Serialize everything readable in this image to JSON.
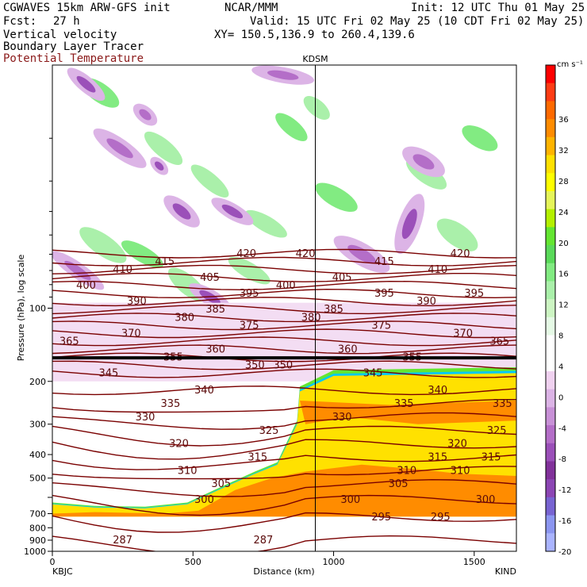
{
  "header": {
    "model": "CGWAVES 15km ARW-GFS init",
    "org": "NCAR/MMM",
    "init": "Init: 12 UTC Thu 01 May 25",
    "fcst_label": "Fcst:",
    "fcst_value": "27 h",
    "valid": "Valid: 15 UTC Fri 02 May 25 (10 CDT Fri 02 May 25)",
    "field1": "Vertical velocity",
    "field2": "Boundary Layer Tracer",
    "field3": "Potential Temperature",
    "xy": "XY= 150.5,136.9 to 260.4,139.6"
  },
  "colors": {
    "isentrope": "#7a0000",
    "thick_line": "#000000",
    "pbl_fill": "#ff8c00"
  },
  "chart_data": {
    "type": "heatmap",
    "title": "",
    "station_marker": "KDSM",
    "station_distance_km": 935,
    "xlabel": "Distance (km)",
    "ylabel": "Pressure (hPa), log scale",
    "x_endpoints": {
      "left": "KBJC",
      "right": "KIND"
    },
    "xlim": [
      0,
      1650
    ],
    "x_ticks": [
      0,
      500,
      1000,
      1500
    ],
    "y_scale": "log",
    "ylim": [
      1000,
      10
    ],
    "y_ticks": [
      100,
      200,
      300,
      400,
      500,
      600,
      700,
      800,
      900,
      1000
    ],
    "y_tick_labels": [
      "100",
      "200",
      "300",
      "400",
      "500",
      "",
      "700",
      "800",
      "900",
      "1000"
    ],
    "colorbar": {
      "unit": "cm s⁻¹",
      "labels": [
        "36",
        "32",
        "28",
        "24",
        "20",
        "16",
        "12",
        "8",
        "4",
        "0",
        "-4",
        "-8",
        "-12",
        "-16",
        "-20"
      ],
      "colors": [
        "#ff0000",
        "#ff3c14",
        "#ff6a00",
        "#ff8c00",
        "#ffb400",
        "#ffe100",
        "#ffff00",
        "#e6f55a",
        "#b4f000",
        "#64e632",
        "#5ada5a",
        "#82eb82",
        "#aaf0aa",
        "#cdf5c3",
        "#e6fae6",
        "#ffffff",
        "#ffffff",
        "#f0d2f0",
        "#dcb4e6",
        "#c891d7",
        "#b46ec8",
        "#9b50b9",
        "#82329b",
        "#8c46b4",
        "#7864d2",
        "#8c96f0",
        "#aab4ff"
      ]
    },
    "theta_contours": [
      {
        "value": 287,
        "label_positions_km": [
          250,
          750
        ]
      },
      {
        "value": 295,
        "label_positions_km": [
          1170,
          1380
        ]
      },
      {
        "value": 300,
        "label_positions_km": [
          540,
          1060,
          1540
        ]
      },
      {
        "value": 305,
        "label_positions_km": [
          600,
          1230
        ]
      },
      {
        "value": 310,
        "label_positions_km": [
          480,
          1260,
          1450
        ]
      },
      {
        "value": 315,
        "label_positions_km": [
          730,
          1370,
          1560
        ]
      },
      {
        "value": 320,
        "label_positions_km": [
          450,
          1440
        ]
      },
      {
        "value": 325,
        "label_positions_km": [
          770,
          1580
        ]
      },
      {
        "value": 330,
        "label_positions_km": [
          330,
          1030
        ]
      },
      {
        "value": 335,
        "label_positions_km": [
          420,
          1250,
          1600
        ]
      },
      {
        "value": 340,
        "label_positions_km": [
          540,
          1370
        ]
      },
      {
        "value": 345,
        "label_positions_km": [
          200,
          1140
        ]
      },
      {
        "value": 350,
        "label_positions_km": [
          720,
          820
        ]
      },
      {
        "value": 355,
        "label_positions_km": [
          430,
          1280
        ]
      },
      {
        "value": 360,
        "label_positions_km": [
          580,
          1050
        ]
      },
      {
        "value": 365,
        "label_positions_km": [
          60,
          1590
        ]
      },
      {
        "value": 370,
        "label_positions_km": [
          280,
          1460
        ]
      },
      {
        "value": 375,
        "label_positions_km": [
          700,
          1170
        ]
      },
      {
        "value": 380,
        "label_positions_km": [
          470,
          920
        ]
      },
      {
        "value": 385,
        "label_positions_km": [
          580,
          1000
        ]
      },
      {
        "value": 390,
        "label_positions_km": [
          300,
          1330
        ]
      },
      {
        "value": 395,
        "label_positions_km": [
          700,
          1180,
          1500
        ]
      },
      {
        "value": 400,
        "label_positions_km": [
          120,
          830
        ]
      },
      {
        "value": 405,
        "label_positions_km": [
          560,
          1030
        ]
      },
      {
        "value": 410,
        "label_positions_km": [
          250,
          1370
        ]
      },
      {
        "value": 415,
        "label_positions_km": [
          400,
          1180
        ]
      },
      {
        "value": 420,
        "label_positions_km": [
          690,
          900,
          1450
        ]
      }
    ]
  }
}
